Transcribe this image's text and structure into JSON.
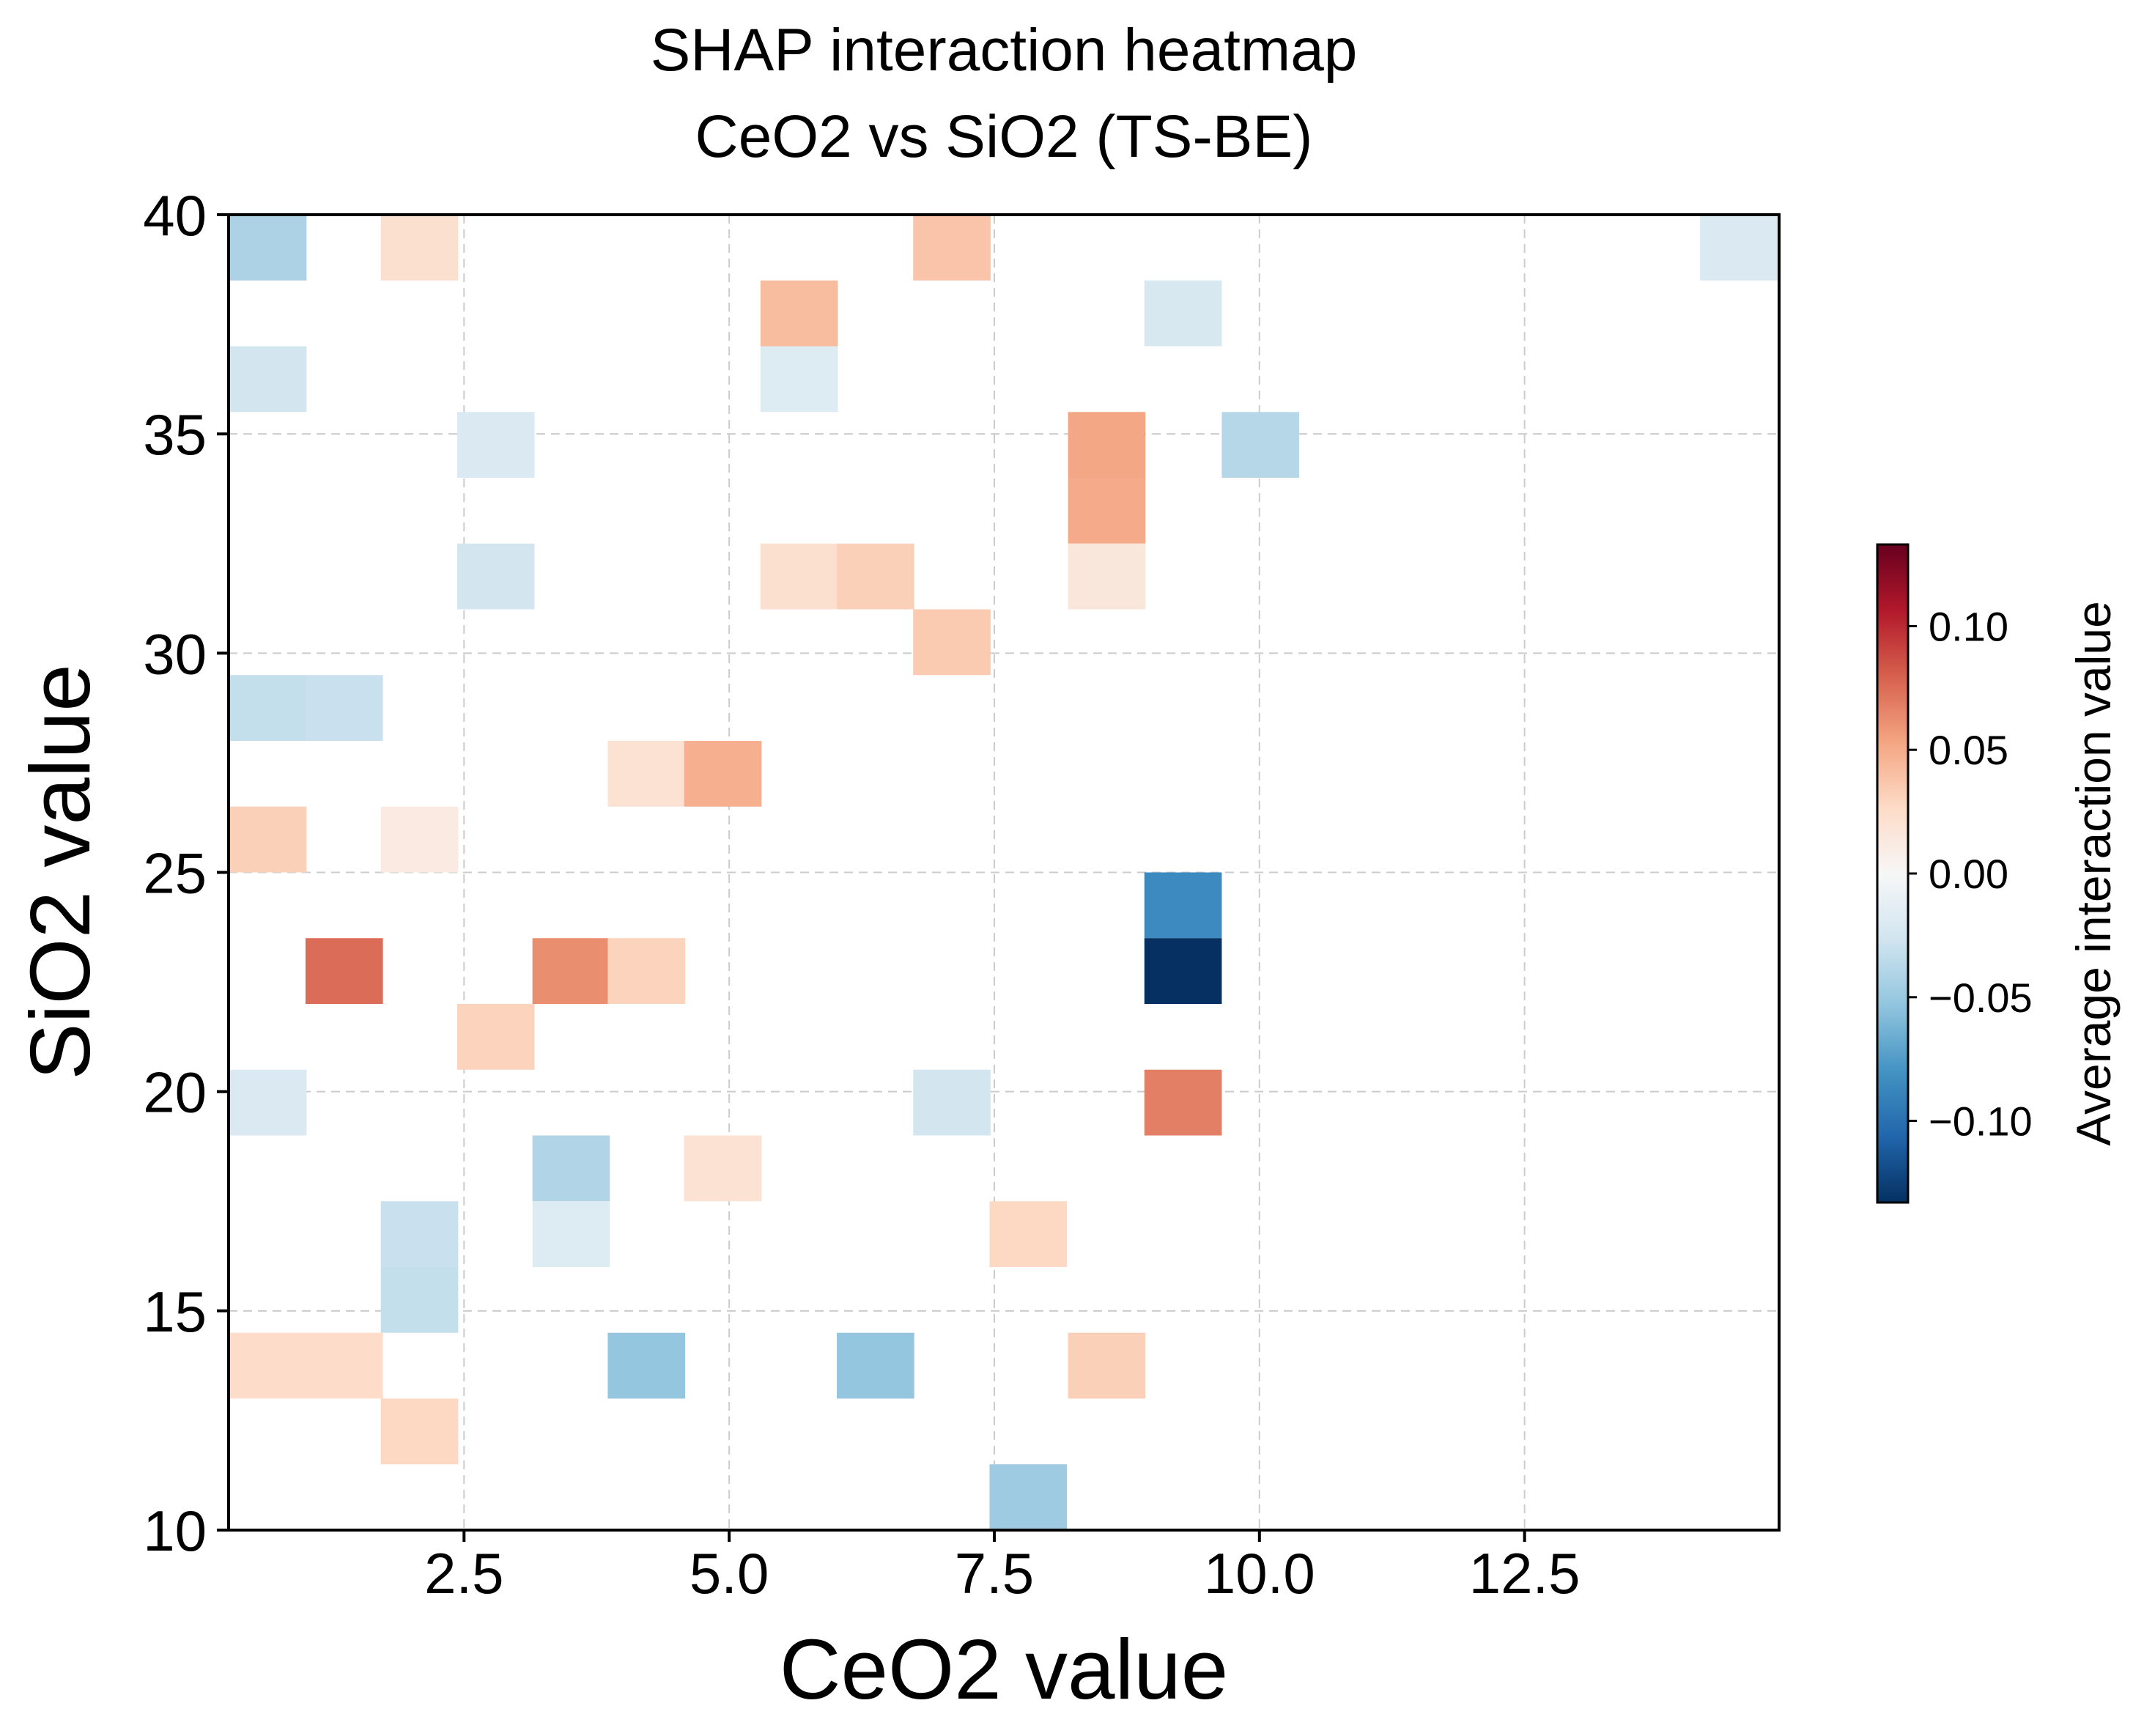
{
  "chart_data": {
    "type": "heatmap",
    "title": "SHAP interaction heatmap",
    "subtitle": "CeO2 vs SiO2 (TS-BE)",
    "xlabel": "CeO2 value",
    "ylabel": "SiO2 value",
    "xlim": [
      0.28,
      14.9
    ],
    "ylim": [
      10,
      40
    ],
    "xticks": [
      2.5,
      5.0,
      7.5,
      10.0,
      12.5
    ],
    "xtick_labels": [
      "2.5",
      "5.0",
      "7.5",
      "10.0",
      "12.5"
    ],
    "yticks": [
      10,
      15,
      20,
      25,
      30,
      35,
      40
    ],
    "ytick_labels": [
      "10",
      "15",
      "20",
      "25",
      "30",
      "35",
      "40"
    ],
    "grid": true,
    "cell_size": {
      "x": 0.73,
      "y": 1.5
    },
    "colorbar": {
      "label": "Average interaction value",
      "range": [
        -0.133,
        0.133
      ],
      "ticks": [
        0.1,
        0.05,
        0.0,
        -0.05,
        -0.1
      ],
      "tick_labels": [
        "0.10",
        "0.05",
        "0.00",
        "−0.05",
        "−0.10"
      ],
      "colormap": "RdBu_r"
    },
    "cells": [
      {
        "x": 0.65,
        "y": 39.25,
        "value": -0.042
      },
      {
        "x": 2.08,
        "y": 39.25,
        "value": 0.022
      },
      {
        "x": 7.1,
        "y": 39.25,
        "value": 0.038
      },
      {
        "x": 14.52,
        "y": 39.25,
        "value": -0.02
      },
      {
        "x": 5.66,
        "y": 37.75,
        "value": 0.042
      },
      {
        "x": 9.28,
        "y": 37.75,
        "value": -0.022
      },
      {
        "x": 0.65,
        "y": 36.25,
        "value": -0.025
      },
      {
        "x": 5.66,
        "y": 36.25,
        "value": -0.018
      },
      {
        "x": 2.8,
        "y": 34.75,
        "value": -0.02
      },
      {
        "x": 8.56,
        "y": 34.75,
        "value": 0.052
      },
      {
        "x": 10.01,
        "y": 34.75,
        "value": -0.038
      },
      {
        "x": 8.56,
        "y": 33.25,
        "value": 0.05
      },
      {
        "x": 2.8,
        "y": 31.75,
        "value": -0.025
      },
      {
        "x": 5.66,
        "y": 31.75,
        "value": 0.022
      },
      {
        "x": 6.38,
        "y": 31.75,
        "value": 0.032
      },
      {
        "x": 8.56,
        "y": 31.75,
        "value": 0.015
      },
      {
        "x": 7.1,
        "y": 30.25,
        "value": 0.035
      },
      {
        "x": 0.65,
        "y": 28.75,
        "value": -0.032
      },
      {
        "x": 1.37,
        "y": 28.75,
        "value": -0.03
      },
      {
        "x": 4.22,
        "y": 27.25,
        "value": 0.02
      },
      {
        "x": 4.94,
        "y": 27.25,
        "value": 0.048
      },
      {
        "x": 0.65,
        "y": 25.75,
        "value": 0.032
      },
      {
        "x": 2.08,
        "y": 25.75,
        "value": 0.012
      },
      {
        "x": 9.28,
        "y": 24.25,
        "value": -0.085
      },
      {
        "x": 1.37,
        "y": 22.75,
        "value": 0.075
      },
      {
        "x": 3.51,
        "y": 22.75,
        "value": 0.062
      },
      {
        "x": 4.22,
        "y": 22.75,
        "value": 0.03
      },
      {
        "x": 9.28,
        "y": 22.75,
        "value": -0.133
      },
      {
        "x": 2.8,
        "y": 21.25,
        "value": 0.03
      },
      {
        "x": 0.65,
        "y": 19.75,
        "value": -0.02
      },
      {
        "x": 7.1,
        "y": 19.75,
        "value": -0.025
      },
      {
        "x": 9.28,
        "y": 19.75,
        "value": 0.068
      },
      {
        "x": 3.51,
        "y": 18.25,
        "value": -0.04
      },
      {
        "x": 4.94,
        "y": 18.25,
        "value": 0.02
      },
      {
        "x": 2.08,
        "y": 16.75,
        "value": -0.03
      },
      {
        "x": 3.51,
        "y": 16.75,
        "value": -0.018
      },
      {
        "x": 7.82,
        "y": 16.75,
        "value": 0.028
      },
      {
        "x": 2.08,
        "y": 15.25,
        "value": -0.032
      },
      {
        "x": 0.65,
        "y": 13.75,
        "value": 0.025
      },
      {
        "x": 1.37,
        "y": 13.75,
        "value": 0.025
      },
      {
        "x": 4.22,
        "y": 13.75,
        "value": -0.052
      },
      {
        "x": 6.38,
        "y": 13.75,
        "value": -0.052
      },
      {
        "x": 8.56,
        "y": 13.75,
        "value": 0.032
      },
      {
        "x": 2.08,
        "y": 12.25,
        "value": 0.028
      },
      {
        "x": 7.82,
        "y": 10.75,
        "value": -0.048
      }
    ]
  }
}
